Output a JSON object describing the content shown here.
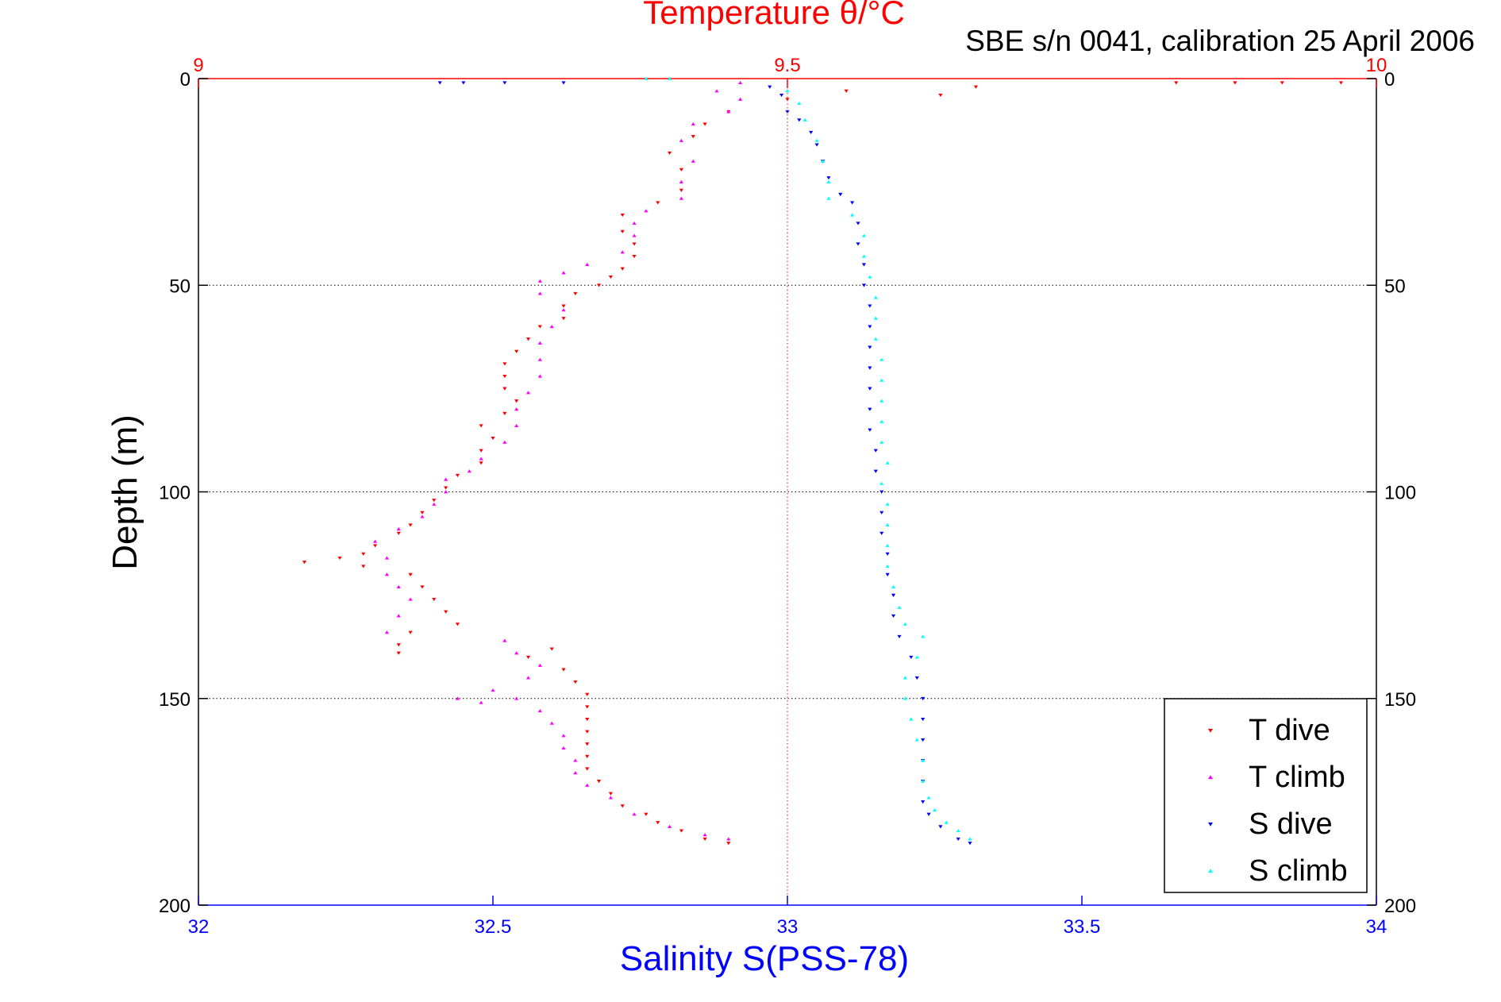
{
  "chart_data": {
    "type": "scatter",
    "title": "Temperature θ/°C",
    "subtitle": "SBE s/n 0041, calibration 25 April 2006",
    "xlabel": "Salinity S(PSS-78)",
    "ylabel": "Depth (m)",
    "x_bottom": {
      "label": "Salinity S(PSS-78)",
      "range": [
        32,
        34
      ],
      "ticks": [
        "32",
        "32.5",
        "33",
        "33.5",
        "34"
      ],
      "color": "#0000ff"
    },
    "x_top": {
      "label": "Temperature θ/°C",
      "range": [
        9,
        10
      ],
      "ticks": [
        "9",
        "9.5",
        "10"
      ],
      "color": "#ff0000"
    },
    "y": {
      "range": [
        0,
        200
      ],
      "reversed": true,
      "ticks": [
        "0",
        "50",
        "100",
        "150",
        "200"
      ]
    },
    "grid": "dotted horizontal at depth ticks; dotted vertical at 9.5 °C",
    "legend_position": "bottom-right",
    "series": [
      {
        "name": "T dive",
        "axis": "temperature",
        "color": "#ff0000",
        "marker": "triangle-down",
        "points": [
          [
            9.97,
            1
          ],
          [
            9.92,
            1
          ],
          [
            9.88,
            1
          ],
          [
            9.83,
            1
          ],
          [
            9.66,
            2
          ],
          [
            9.63,
            4
          ],
          [
            9.55,
            3
          ],
          [
            9.5,
            5
          ],
          [
            9.45,
            8
          ],
          [
            9.43,
            11
          ],
          [
            9.42,
            14
          ],
          [
            9.4,
            18
          ],
          [
            9.41,
            22
          ],
          [
            9.41,
            27
          ],
          [
            9.39,
            30
          ],
          [
            9.36,
            33
          ],
          [
            9.36,
            37
          ],
          [
            9.37,
            40
          ],
          [
            9.37,
            43
          ],
          [
            9.36,
            46
          ],
          [
            9.35,
            48
          ],
          [
            9.34,
            50
          ],
          [
            9.32,
            52
          ],
          [
            9.31,
            55
          ],
          [
            9.31,
            58
          ],
          [
            9.29,
            60
          ],
          [
            9.28,
            63
          ],
          [
            9.27,
            66
          ],
          [
            9.26,
            69
          ],
          [
            9.26,
            72
          ],
          [
            9.26,
            75
          ],
          [
            9.27,
            78
          ],
          [
            9.26,
            81
          ],
          [
            9.24,
            84
          ],
          [
            9.25,
            87
          ],
          [
            9.24,
            90
          ],
          [
            9.24,
            93
          ],
          [
            9.22,
            96
          ],
          [
            9.21,
            99
          ],
          [
            9.2,
            102
          ],
          [
            9.19,
            105
          ],
          [
            9.18,
            108
          ],
          [
            9.17,
            110
          ],
          [
            9.15,
            113
          ],
          [
            9.14,
            115
          ],
          [
            9.12,
            116
          ],
          [
            9.09,
            117
          ],
          [
            9.14,
            118
          ],
          [
            9.18,
            120
          ],
          [
            9.19,
            123
          ],
          [
            9.2,
            126
          ],
          [
            9.21,
            129
          ],
          [
            9.22,
            132
          ],
          [
            9.18,
            134
          ],
          [
            9.17,
            137
          ],
          [
            9.17,
            139
          ],
          [
            9.3,
            138
          ],
          [
            9.28,
            140
          ],
          [
            9.31,
            143
          ],
          [
            9.32,
            146
          ],
          [
            9.33,
            149
          ],
          [
            9.33,
            152
          ],
          [
            9.33,
            155
          ],
          [
            9.33,
            158
          ],
          [
            9.33,
            161
          ],
          [
            9.33,
            164
          ],
          [
            9.33,
            167
          ],
          [
            9.34,
            170
          ],
          [
            9.35,
            173
          ],
          [
            9.36,
            176
          ],
          [
            9.38,
            178
          ],
          [
            9.39,
            180
          ],
          [
            9.41,
            182
          ],
          [
            9.43,
            184
          ],
          [
            9.45,
            185
          ]
        ]
      },
      {
        "name": "T climb",
        "axis": "temperature",
        "color": "#ff00ff",
        "marker": "triangle-up",
        "points": [
          [
            9.46,
            1
          ],
          [
            9.44,
            3
          ],
          [
            9.46,
            5
          ],
          [
            9.45,
            8
          ],
          [
            9.42,
            11
          ],
          [
            9.41,
            15
          ],
          [
            9.42,
            20
          ],
          [
            9.41,
            25
          ],
          [
            9.41,
            29
          ],
          [
            9.38,
            32
          ],
          [
            9.37,
            35
          ],
          [
            9.37,
            38
          ],
          [
            9.36,
            42
          ],
          [
            9.33,
            45
          ],
          [
            9.31,
            47
          ],
          [
            9.29,
            49
          ],
          [
            9.29,
            52
          ],
          [
            9.31,
            56
          ],
          [
            9.3,
            60
          ],
          [
            9.29,
            64
          ],
          [
            9.29,
            68
          ],
          [
            9.29,
            72
          ],
          [
            9.28,
            76
          ],
          [
            9.27,
            80
          ],
          [
            9.27,
            84
          ],
          [
            9.26,
            88
          ],
          [
            9.24,
            92
          ],
          [
            9.23,
            95
          ],
          [
            9.21,
            97
          ],
          [
            9.21,
            100
          ],
          [
            9.2,
            103
          ],
          [
            9.19,
            106
          ],
          [
            9.17,
            109
          ],
          [
            9.15,
            112
          ],
          [
            9.16,
            116
          ],
          [
            9.16,
            120
          ],
          [
            9.17,
            123
          ],
          [
            9.18,
            126
          ],
          [
            9.17,
            130
          ],
          [
            9.16,
            134
          ],
          [
            9.26,
            136
          ],
          [
            9.27,
            139
          ],
          [
            9.29,
            142
          ],
          [
            9.28,
            145
          ],
          [
            9.25,
            148
          ],
          [
            9.22,
            150
          ],
          [
            9.24,
            151
          ],
          [
            9.27,
            150
          ],
          [
            9.29,
            153
          ],
          [
            9.3,
            156
          ],
          [
            9.31,
            159
          ],
          [
            9.31,
            162
          ],
          [
            9.32,
            165
          ],
          [
            9.32,
            168
          ],
          [
            9.33,
            171
          ],
          [
            9.35,
            174
          ],
          [
            9.37,
            178
          ],
          [
            9.4,
            181
          ],
          [
            9.43,
            183
          ],
          [
            9.45,
            184
          ]
        ]
      },
      {
        "name": "S dive",
        "axis": "salinity",
        "color": "#0000ff",
        "marker": "triangle-down",
        "points": [
          [
            32.41,
            1
          ],
          [
            32.45,
            1
          ],
          [
            32.52,
            1
          ],
          [
            32.62,
            1
          ],
          [
            32.97,
            2
          ],
          [
            32.99,
            4
          ],
          [
            33.0,
            8
          ],
          [
            33.02,
            10
          ],
          [
            33.04,
            13
          ],
          [
            33.05,
            16
          ],
          [
            33.06,
            20
          ],
          [
            33.07,
            24
          ],
          [
            33.09,
            28
          ],
          [
            33.11,
            30
          ],
          [
            33.12,
            35
          ],
          [
            33.12,
            40
          ],
          [
            33.13,
            45
          ],
          [
            33.13,
            50
          ],
          [
            33.14,
            55
          ],
          [
            33.14,
            60
          ],
          [
            33.14,
            65
          ],
          [
            33.14,
            70
          ],
          [
            33.14,
            75
          ],
          [
            33.14,
            80
          ],
          [
            33.14,
            85
          ],
          [
            33.15,
            90
          ],
          [
            33.15,
            95
          ],
          [
            33.16,
            100
          ],
          [
            33.16,
            105
          ],
          [
            33.16,
            110
          ],
          [
            33.17,
            115
          ],
          [
            33.17,
            120
          ],
          [
            33.18,
            125
          ],
          [
            33.18,
            130
          ],
          [
            33.19,
            135
          ],
          [
            33.21,
            140
          ],
          [
            33.22,
            145
          ],
          [
            33.23,
            150
          ],
          [
            33.23,
            155
          ],
          [
            33.23,
            160
          ],
          [
            33.23,
            165
          ],
          [
            33.23,
            170
          ],
          [
            33.23,
            175
          ],
          [
            33.24,
            178
          ],
          [
            33.26,
            181
          ],
          [
            33.29,
            184
          ],
          [
            33.31,
            185
          ]
        ]
      },
      {
        "name": "S climb",
        "axis": "salinity",
        "color": "#00ffff",
        "marker": "triangle-up",
        "points": [
          [
            32.76,
            0
          ],
          [
            32.8,
            0
          ],
          [
            33.0,
            3
          ],
          [
            33.02,
            6
          ],
          [
            33.03,
            10
          ],
          [
            33.05,
            15
          ],
          [
            33.06,
            20
          ],
          [
            33.07,
            25
          ],
          [
            33.07,
            29
          ],
          [
            33.11,
            33
          ],
          [
            33.13,
            38
          ],
          [
            33.13,
            43
          ],
          [
            33.14,
            48
          ],
          [
            33.15,
            53
          ],
          [
            33.15,
            58
          ],
          [
            33.15,
            63
          ],
          [
            33.16,
            68
          ],
          [
            33.16,
            73
          ],
          [
            33.16,
            78
          ],
          [
            33.16,
            83
          ],
          [
            33.16,
            88
          ],
          [
            33.17,
            93
          ],
          [
            33.16,
            98
          ],
          [
            33.17,
            103
          ],
          [
            33.17,
            108
          ],
          [
            33.17,
            113
          ],
          [
            33.17,
            118
          ],
          [
            33.18,
            123
          ],
          [
            33.19,
            128
          ],
          [
            33.2,
            132
          ],
          [
            33.23,
            135
          ],
          [
            33.22,
            140
          ],
          [
            33.2,
            145
          ],
          [
            33.2,
            150
          ],
          [
            33.21,
            155
          ],
          [
            33.22,
            160
          ],
          [
            33.23,
            165
          ],
          [
            33.23,
            170
          ],
          [
            33.24,
            174
          ],
          [
            33.25,
            177
          ],
          [
            33.27,
            180
          ],
          [
            33.29,
            182
          ],
          [
            33.31,
            184
          ]
        ]
      }
    ]
  }
}
